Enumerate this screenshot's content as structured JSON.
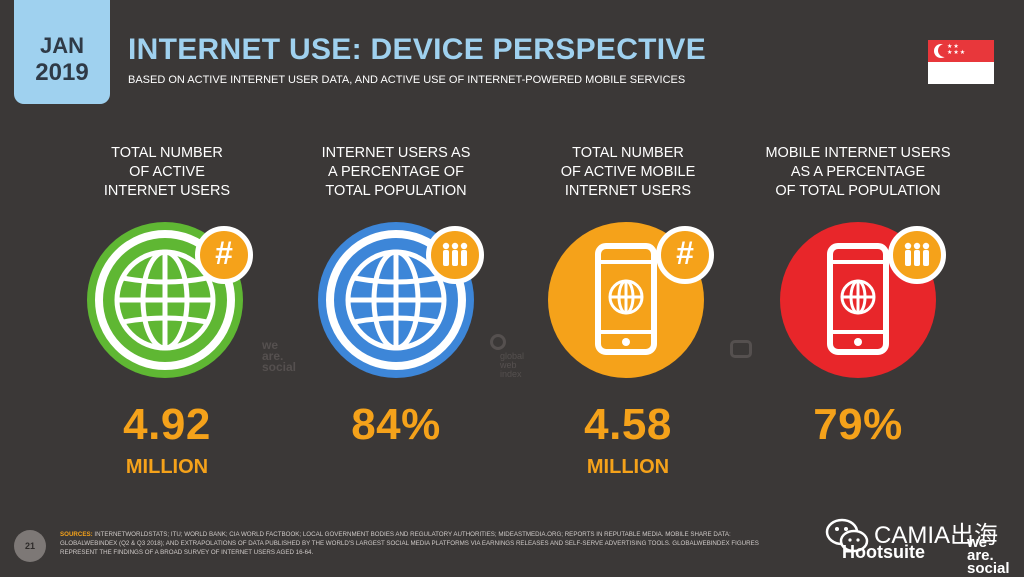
{
  "header": {
    "month": "JAN",
    "year": "2019",
    "title": "INTERNET USE: DEVICE PERSPECTIVE",
    "subtitle": "BASED ON ACTIVE INTERNET USER DATA, AND ACTIVE USE OF INTERNET-POWERED MOBILE SERVICES",
    "flag_icon": "singapore-flag-icon"
  },
  "stats": [
    {
      "label": [
        "TOTAL NUMBER",
        "OF ACTIVE",
        "INTERNET USERS"
      ],
      "value": "4.92",
      "unit": "MILLION",
      "color": "#5fb733",
      "icon": "globe-icon",
      "badge": "#"
    },
    {
      "label": [
        "INTERNET USERS AS",
        "A PERCENTAGE OF",
        "TOTAL POPULATION"
      ],
      "value": "84%",
      "unit": "",
      "color": "#3d86d8",
      "icon": "globe-icon",
      "badge": "people-icon"
    },
    {
      "label": [
        "TOTAL NUMBER",
        "OF ACTIVE MOBILE",
        "INTERNET USERS"
      ],
      "value": "4.58",
      "unit": "MILLION",
      "color": "#f5a21a",
      "icon": "mobile-phone-icon",
      "badge": "#"
    },
    {
      "label": [
        "MOBILE INTERNET USERS",
        "AS A PERCENTAGE",
        "OF TOTAL POPULATION"
      ],
      "value": "79%",
      "unit": "",
      "color": "#e8262a",
      "icon": "mobile-phone-icon",
      "badge": "people-icon"
    }
  ],
  "watermarks": {
    "wearesocial": [
      "we",
      "are.",
      "social"
    ],
    "gwi": [
      "global",
      "web",
      "index"
    ]
  },
  "footer": {
    "page_number": "21",
    "sources_label": "SOURCES:",
    "sources_text": "INTERNETWORLDSTATS; ITU; WORLD BANK; CIA WORLD FACTBOOK; LOCAL GOVERNMENT BODIES AND REGULATORY AUTHORITIES; MIDEASTMEDIA.ORG; REPORTS IN REPUTABLE MEDIA. MOBILE SHARE DATA: GLOBALWEBINDEX (Q2 & Q3 2018); AND EXTRAPOLATIONS OF DATA PUBLISHED BY THE WORLD'S LARGEST SOCIAL MEDIA PLATFORMS VIA EARNINGS RELEASES AND SELF-SERVE ADVERTISING TOOLS. GLOBALWEBINDEX FIGURES REPRESENT THE FINDINGS OF A BROAD SURVEY OF INTERNET USERS AGED 16-64.",
    "camia_text": "CAMIA出海",
    "hootsuite": "Hootsuite",
    "social_lines": [
      "we",
      "are.",
      "social"
    ]
  },
  "colors": {
    "background": "#3b3837",
    "accent_blue": "#9fd1ef",
    "orange": "#f5a21a"
  }
}
